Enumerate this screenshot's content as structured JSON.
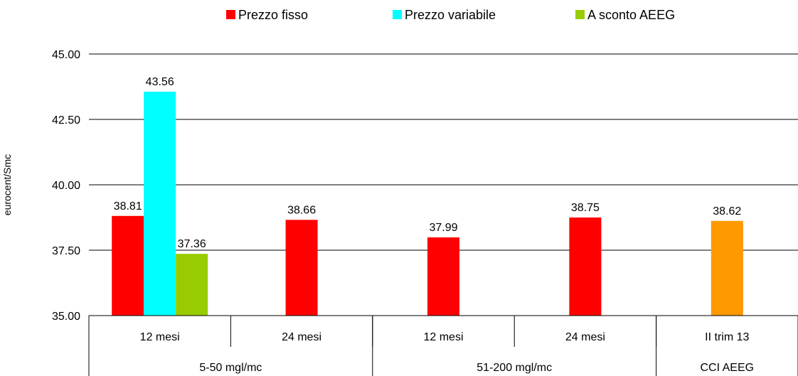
{
  "chart_data": {
    "type": "bar",
    "title": "",
    "ylabel": "eurocent/Smc",
    "ylim": [
      35.0,
      45.0
    ],
    "yticks": [
      "35.00",
      "37.50",
      "40.00",
      "42.50",
      "45.00"
    ],
    "grid": true,
    "legend_position": "top",
    "series": [
      {
        "name": "Prezzo fisso",
        "color": "#ff0000"
      },
      {
        "name": "Prezzo variabile",
        "color": "#00ffff"
      },
      {
        "name": "A sconto AEEG",
        "color": "#99cc00"
      }
    ],
    "categories": [
      {
        "label": "12 mesi",
        "group": "5-50 mgl/mc",
        "bars": [
          {
            "series": "Prezzo fisso",
            "value": 38.81,
            "label": "38.81",
            "color": "#ff0000"
          },
          {
            "series": "Prezzo variabile",
            "value": 43.56,
            "label": "43.56",
            "color": "#00ffff"
          },
          {
            "series": "A sconto AEEG",
            "value": 37.36,
            "label": "37.36",
            "color": "#99cc00"
          }
        ]
      },
      {
        "label": "24 mesi",
        "group": "5-50 mgl/mc",
        "bars": [
          {
            "series": "Prezzo fisso",
            "value": 38.66,
            "label": "38.66",
            "color": "#ff0000"
          }
        ]
      },
      {
        "label": "12 mesi",
        "group": "51-200 mgl/mc",
        "bars": [
          {
            "series": "Prezzo fisso",
            "value": 37.99,
            "label": "37.99",
            "color": "#ff0000"
          }
        ]
      },
      {
        "label": "24 mesi",
        "group": "51-200 mgl/mc",
        "bars": [
          {
            "series": "Prezzo fisso",
            "value": 38.75,
            "label": "38.75",
            "color": "#ff0000"
          }
        ]
      },
      {
        "label": "II trim 13",
        "group": "CCI AEEG",
        "bars": [
          {
            "series": "CCI AEEG",
            "value": 38.62,
            "label": "38.62",
            "color": "#ff9900"
          }
        ]
      }
    ],
    "groups": [
      {
        "label": "5-50 mgl/mc",
        "span": 2
      },
      {
        "label": "51-200 mgl/mc",
        "span": 2
      },
      {
        "label": "CCI AEEG",
        "span": 1
      }
    ]
  }
}
